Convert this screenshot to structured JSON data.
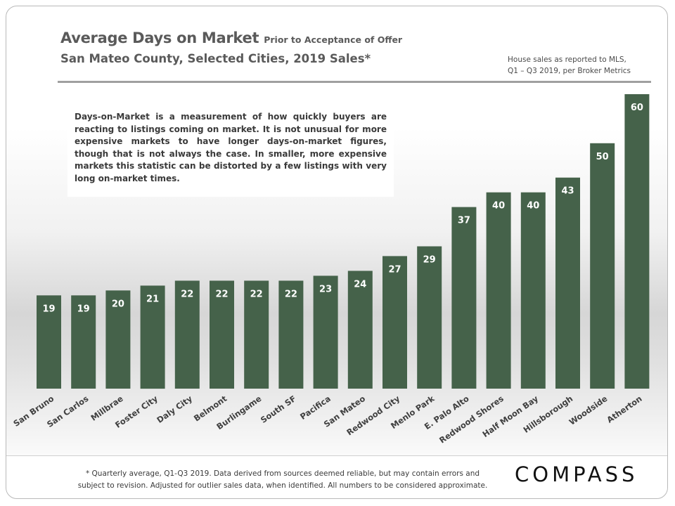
{
  "header": {
    "title": "Average Days on Market",
    "title_suffix": "Prior to Acceptance of Offer",
    "subtitle": "San Mateo County, Selected Cities, 2019 Sales*",
    "source_line1": "House sales as reported to MLS,",
    "source_line2": "Q1 – Q3 2019, per Broker Metrics"
  },
  "note": "Days-on-Market is a measurement of how quickly buyers are reacting to listings coming on market. It is not unusual for more expensive markets to have longer days-on-market figures, though that is not always the case. In smaller, more expensive markets this statistic can be distorted by a few listings with very long on-market times.",
  "chart_data": {
    "type": "bar",
    "title": "Average Days on Market",
    "categories": [
      "San Bruno",
      "San Carlos",
      "Millbrae",
      "Foster City",
      "Daly City",
      "Belmont",
      "Burlingame",
      "South SF",
      "Pacifica",
      "San Mateo",
      "Redwood City",
      "Menlo Park",
      "E. Palo Alto",
      "Redwood Shores",
      "Half Moon Bay",
      "Hillsborough",
      "Woodside",
      "Atherton"
    ],
    "values": [
      19,
      19,
      20,
      21,
      22,
      22,
      22,
      22,
      23,
      24,
      27,
      29,
      37,
      40,
      40,
      43,
      50,
      60
    ],
    "data_labels": true,
    "bar_color": "#45624a",
    "ylim": [
      0,
      60
    ],
    "grid": false,
    "legend": "none"
  },
  "footer": {
    "footnote_line1": "* Quarterly average, Q1-Q3 2019. Data derived from sources deemed reliable, but may contain errors and",
    "footnote_line2": "subject to revision. Adjusted for outlier sales data, when identified. All numbers to be considered approximate.",
    "logo": "COMPASS"
  }
}
